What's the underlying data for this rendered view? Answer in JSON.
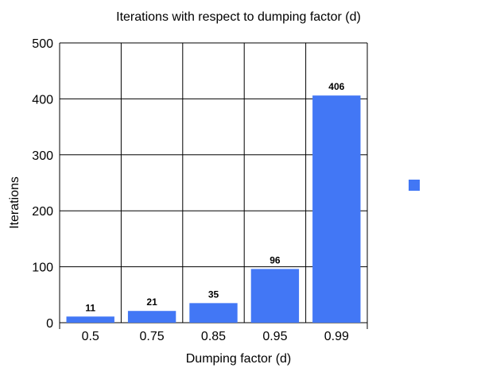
{
  "chart_data": {
    "type": "bar",
    "title": "Iterations with respect to dumping factor (d)",
    "xlabel": "Dumping factor (d)",
    "ylabel": "Iterations",
    "categories": [
      "0.5",
      "0.75",
      "0.85",
      "0.95",
      "0.99"
    ],
    "values": [
      11,
      21,
      35,
      96,
      406
    ],
    "ylim": [
      0,
      500
    ],
    "yticks": [
      0,
      100,
      200,
      300,
      400,
      500
    ],
    "grid": true,
    "legend": "right",
    "series": [
      {
        "values": [
          11,
          21,
          35,
          96,
          406
        ],
        "color": "#4277f5"
      }
    ]
  }
}
